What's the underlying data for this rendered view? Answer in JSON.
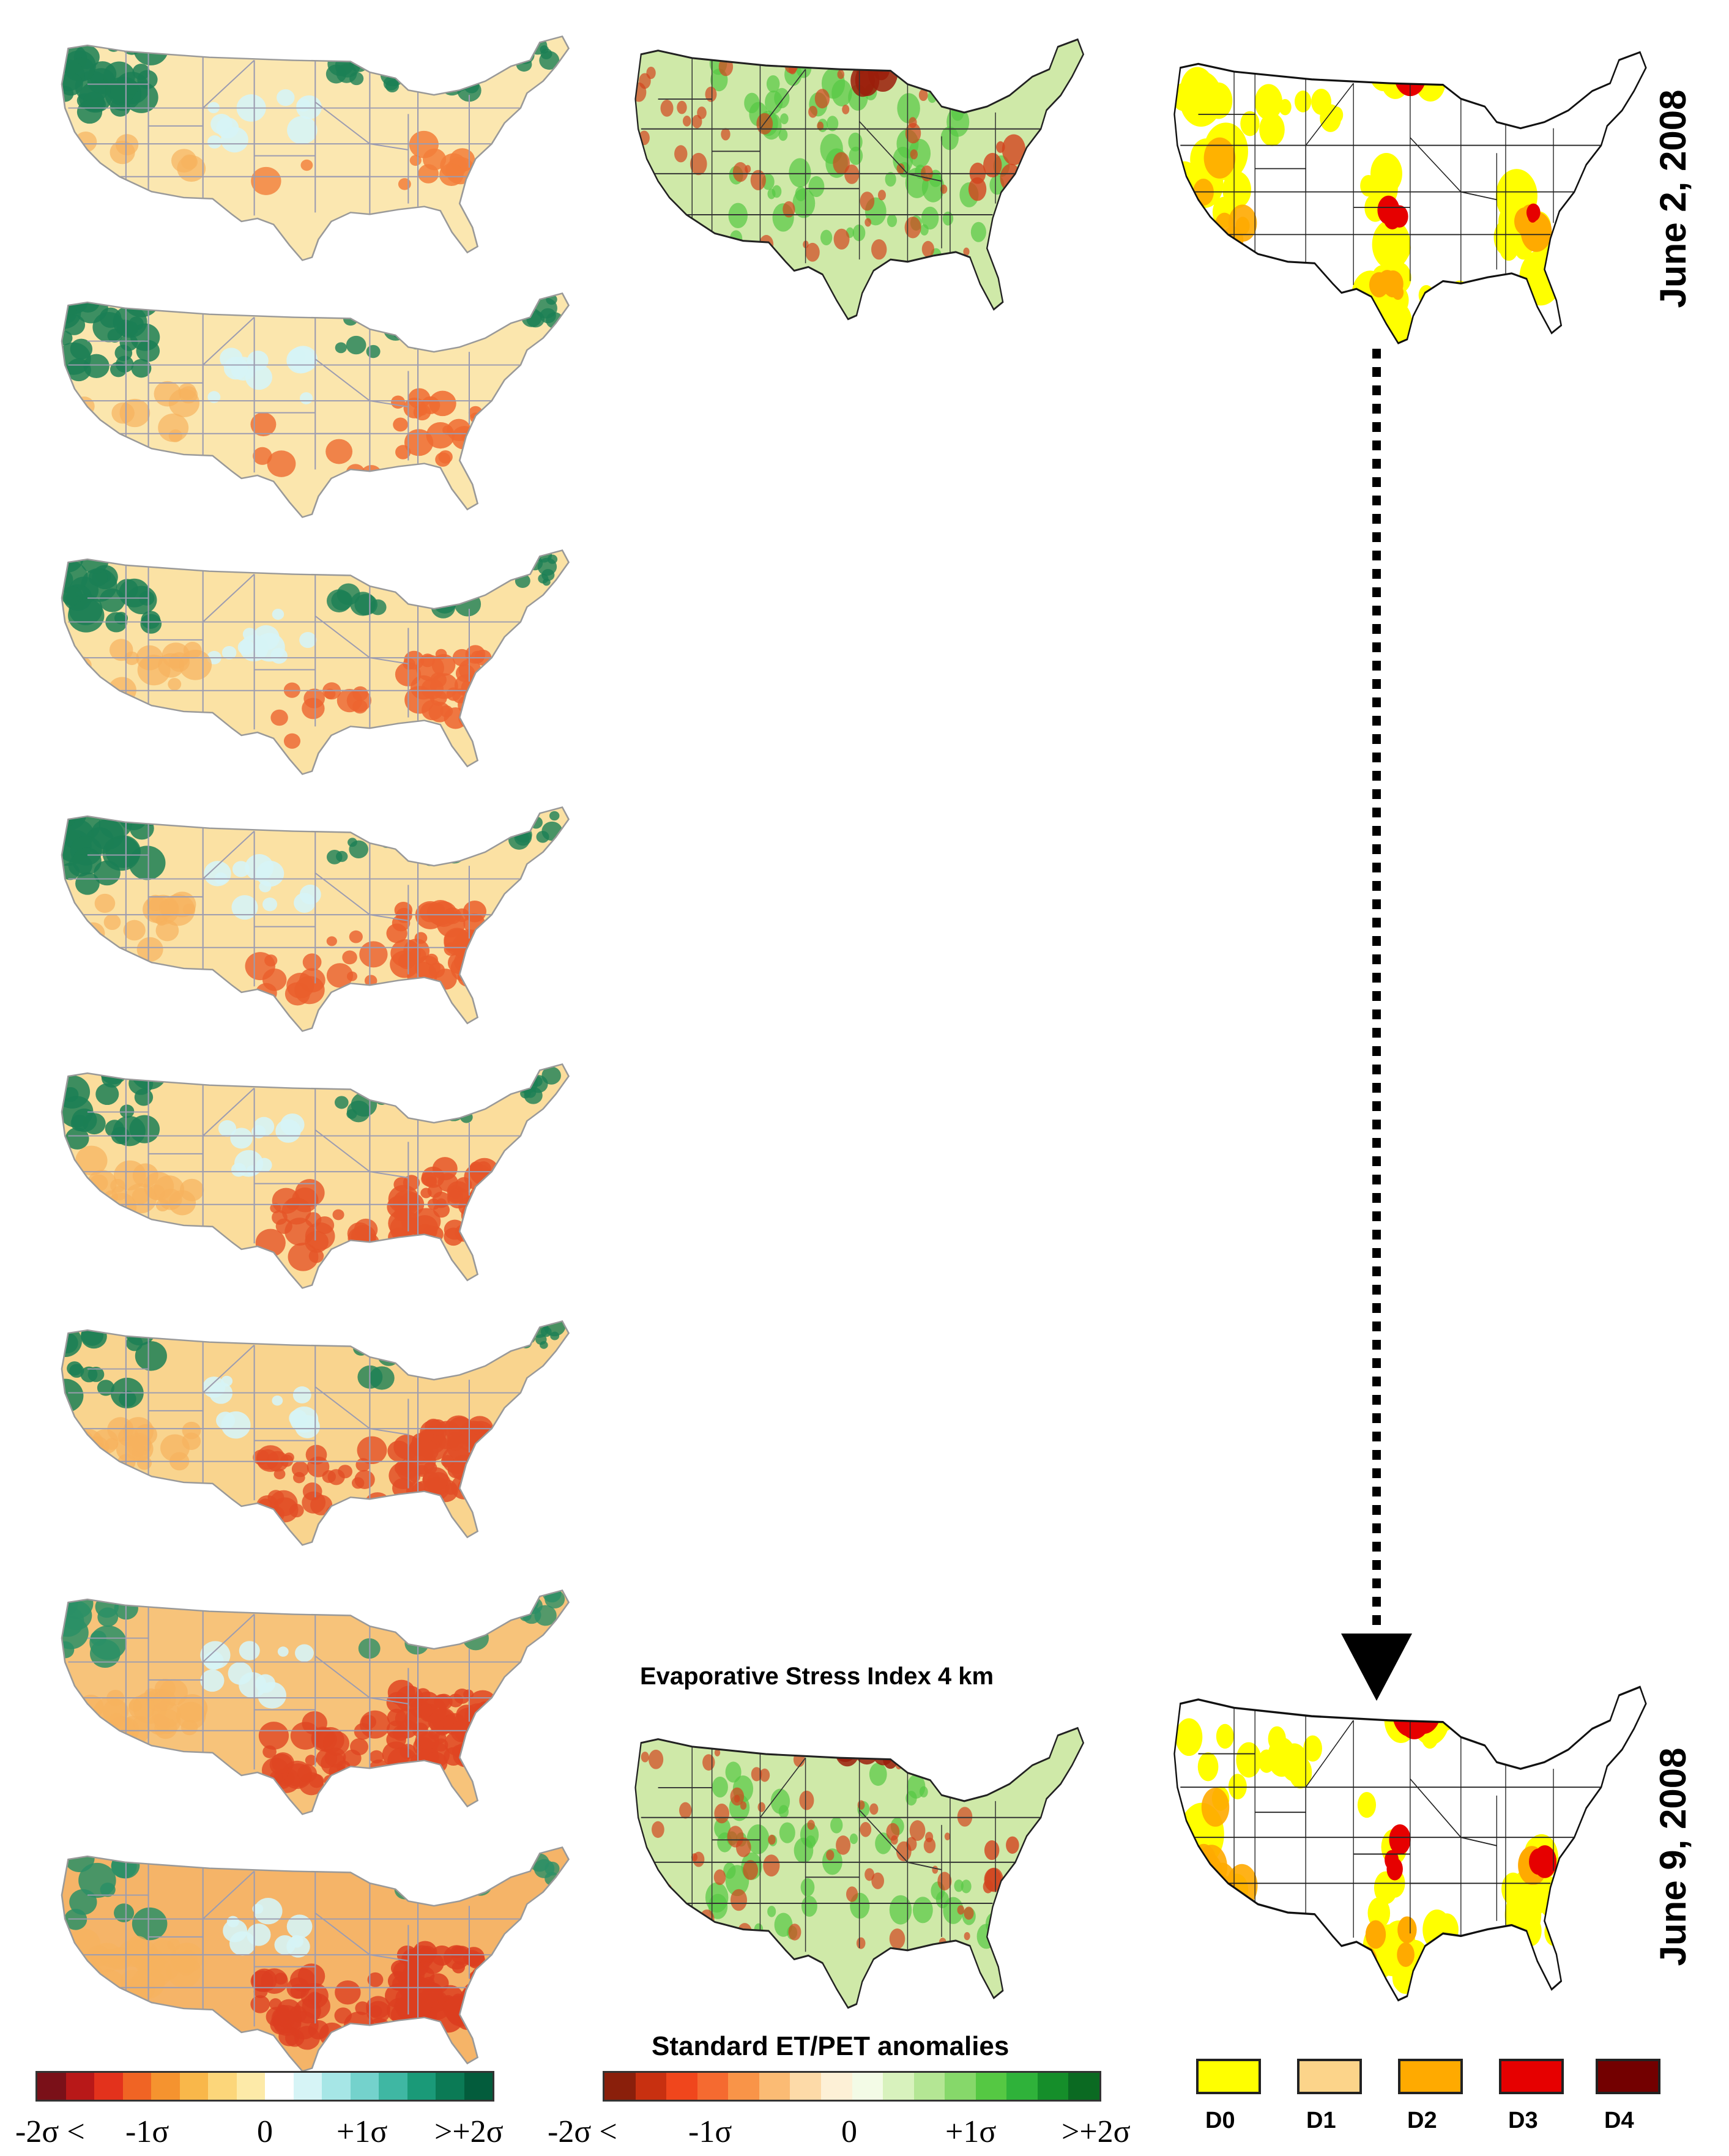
{
  "dates": {
    "top": "June 2, 2008",
    "bottom": "June 9, 2008"
  },
  "esi_title": "Evaporative Stress Index 4 km",
  "legend_title": "Standard ET/PET anomalies",
  "legend_left": {
    "ticks": [
      "-2σ <",
      "-1σ",
      "0",
      "+1σ",
      ">+2σ"
    ],
    "colors": [
      "#7a1018",
      "#b81818",
      "#e3321c",
      "#f06424",
      "#f5932f",
      "#f9b74a",
      "#fcd67a",
      "#fdeaa8",
      "#ffffff",
      "#d6f4f6",
      "#a6e6e6",
      "#74d2cc",
      "#3fb7a3",
      "#1a9a78",
      "#0b7a55",
      "#035c3c"
    ]
  },
  "legend_mid": {
    "ticks": [
      "-2σ <",
      "-1σ",
      "0",
      "+1σ",
      ">+2σ"
    ],
    "colors": [
      "#8a1f0b",
      "#c83010",
      "#f0461c",
      "#f56a30",
      "#f99448",
      "#fbbb74",
      "#fddaa8",
      "#fdf0d6",
      "#f3fbe6",
      "#d8f2bd",
      "#b4e694",
      "#86d86a",
      "#55c843",
      "#2fb23a",
      "#158e2a",
      "#0b6a22"
    ]
  },
  "drought_legend": [
    {
      "label": "D0",
      "color": "#ffff00"
    },
    {
      "label": "D1",
      "color": "#fcd48a"
    },
    {
      "label": "D2",
      "color": "#ffaa00"
    },
    {
      "label": "D3",
      "color": "#e60000"
    },
    {
      "label": "D4",
      "color": "#730000"
    }
  ],
  "anomaly_map_colors": [
    {
      "base": "#fbe7b0",
      "hot": "#f27e3a",
      "cold": "#1b7f55"
    },
    {
      "base": "#fbe6ad",
      "hot": "#ee6a30",
      "cold": "#1b7f55"
    },
    {
      "base": "#fbe2a4",
      "hot": "#ec6430",
      "cold": "#1b7f55"
    },
    {
      "base": "#fbe1a3",
      "hot": "#ea5e2c",
      "cold": "#1b7f55"
    },
    {
      "base": "#fbdd9c",
      "hot": "#e55528",
      "cold": "#1b7f55"
    },
    {
      "base": "#f9d48e",
      "hot": "#e24e26",
      "cold": "#1b7f55"
    },
    {
      "base": "#f7c37a",
      "hot": "#df4522",
      "cold": "#2a8f66"
    },
    {
      "base": "#f5b468",
      "hot": "#dc3e20",
      "cold": "#2a8f66"
    }
  ],
  "esi_map_colors": {
    "base": "#cfe9a8",
    "green": "#55c843",
    "red": "#d2441e"
  },
  "drought_map_colors": {
    "background": "#ffffff",
    "border": "#111111"
  }
}
